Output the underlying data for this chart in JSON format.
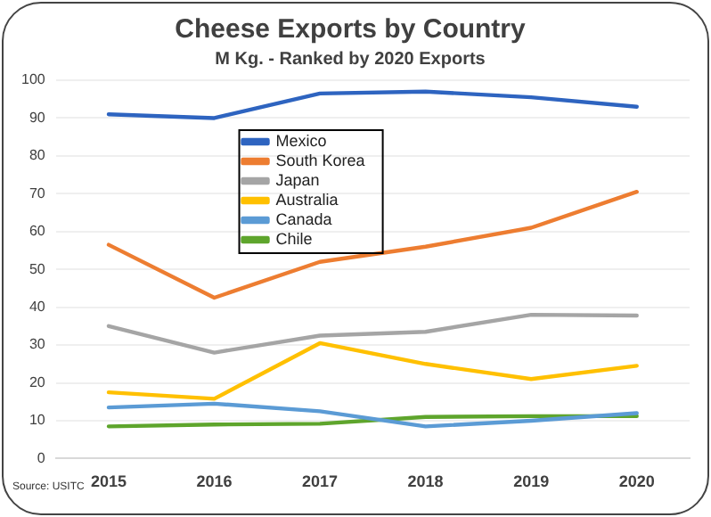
{
  "chart_data": {
    "type": "line",
    "title": "Cheese Exports by Country",
    "subtitle": "M Kg. - Ranked by 2020 Exports",
    "categories": [
      "2015",
      "2016",
      "2017",
      "2018",
      "2019",
      "2020"
    ],
    "series": [
      {
        "name": "Mexico",
        "color": "#2e64c0",
        "values": [
          91,
          90,
          96.5,
          97,
          95.5,
          93
        ]
      },
      {
        "name": "South Korea",
        "color": "#ed7d31",
        "values": [
          56.5,
          42.5,
          52,
          56,
          61,
          70.5
        ]
      },
      {
        "name": "Japan",
        "color": "#a5a5a5",
        "values": [
          35,
          28,
          32.5,
          33.5,
          38,
          37.8
        ]
      },
      {
        "name": "Australia",
        "color": "#ffc000",
        "values": [
          17.5,
          15.8,
          30.5,
          25,
          21,
          24.5
        ]
      },
      {
        "name": "Canada",
        "color": "#5b9bd5",
        "values": [
          13.5,
          14.5,
          12.5,
          8.5,
          10,
          12
        ]
      },
      {
        "name": "Chile",
        "color": "#5ea52c",
        "values": [
          8.5,
          9,
          9.2,
          11,
          11.2,
          11.2
        ]
      }
    ],
    "ylim": [
      0,
      100
    ],
    "yticks": [
      0,
      10,
      20,
      30,
      40,
      50,
      60,
      70,
      80,
      90,
      100
    ],
    "grid": "y",
    "legend": "top left",
    "marker": "none",
    "line_style": "solid",
    "annotations": [
      "Source: USITC"
    ]
  }
}
